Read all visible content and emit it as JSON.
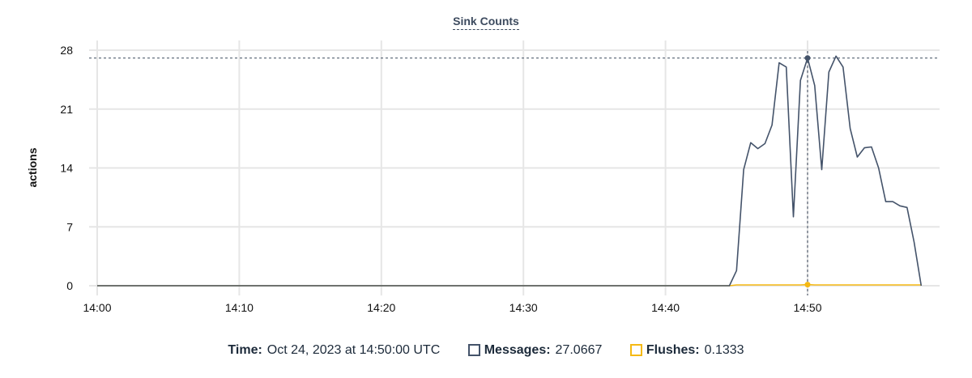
{
  "chart_data": {
    "type": "line",
    "title": "Sink Counts",
    "ylabel": "actions",
    "xlabel": "",
    "ylim": [
      0,
      28
    ],
    "yticks": [
      "0",
      "7",
      "14",
      "21",
      "28"
    ],
    "xticks": [
      "14:00",
      "14:10",
      "14:20",
      "14:30",
      "14:40",
      "14:50"
    ],
    "grid": true,
    "x": [
      "14:00:00",
      "14:00:30",
      "14:01:00",
      "14:01:30",
      "14:02:00",
      "14:02:30",
      "14:03:00",
      "14:03:30",
      "14:04:00",
      "14:04:30",
      "14:05:00",
      "14:05:30",
      "14:06:00",
      "14:06:30",
      "14:07:00",
      "14:07:30",
      "14:08:00",
      "14:08:30",
      "14:09:00",
      "14:09:30",
      "14:10:00",
      "14:10:30",
      "14:11:00",
      "14:11:30",
      "14:12:00",
      "14:12:30",
      "14:13:00",
      "14:13:30",
      "14:14:00",
      "14:14:30",
      "14:15:00",
      "14:15:30",
      "14:16:00",
      "14:16:30",
      "14:17:00",
      "14:17:30",
      "14:18:00",
      "14:18:30",
      "14:19:00",
      "14:19:30",
      "14:20:00",
      "14:20:30",
      "14:21:00",
      "14:21:30",
      "14:22:00",
      "14:22:30",
      "14:23:00",
      "14:23:30",
      "14:24:00",
      "14:24:30",
      "14:25:00",
      "14:25:30",
      "14:26:00",
      "14:26:30",
      "14:27:00",
      "14:27:30",
      "14:28:00",
      "14:28:30",
      "14:29:00",
      "14:29:30",
      "14:30:00",
      "14:30:30",
      "14:31:00",
      "14:31:30",
      "14:32:00",
      "14:32:30",
      "14:33:00",
      "14:33:30",
      "14:34:00",
      "14:34:30",
      "14:35:00",
      "14:35:30",
      "14:36:00",
      "14:36:30",
      "14:37:00",
      "14:37:30",
      "14:38:00",
      "14:38:30",
      "14:39:00",
      "14:39:30",
      "14:40:00",
      "14:40:30",
      "14:41:00",
      "14:41:30",
      "14:42:00",
      "14:42:30",
      "14:43:00",
      "14:43:30",
      "14:44:00",
      "14:44:30",
      "14:45:00",
      "14:45:30",
      "14:46:00",
      "14:46:30",
      "14:47:00",
      "14:47:30",
      "14:48:00",
      "14:48:30",
      "14:49:00",
      "14:49:30",
      "14:50:00",
      "14:50:30",
      "14:51:00",
      "14:51:30",
      "14:52:00",
      "14:52:30",
      "14:53:00",
      "14:53:30",
      "14:54:00",
      "14:54:30",
      "14:55:00",
      "14:55:30",
      "14:56:00",
      "14:56:30",
      "14:57:00",
      "14:57:30",
      "14:58:00"
    ],
    "series": [
      {
        "name": "Messages",
        "color": "#44536a",
        "values": [
          0,
          0,
          0,
          0,
          0,
          0,
          0,
          0,
          0,
          0,
          0,
          0,
          0,
          0,
          0,
          0,
          0,
          0,
          0,
          0,
          0,
          0,
          0,
          0,
          0,
          0,
          0,
          0,
          0,
          0,
          0,
          0,
          0,
          0,
          0,
          0,
          0,
          0,
          0,
          0,
          0,
          0,
          0,
          0,
          0,
          0,
          0,
          0,
          0,
          0,
          0,
          0,
          0,
          0,
          0,
          0,
          0,
          0,
          0,
          0,
          0,
          0,
          0,
          0,
          0,
          0,
          0,
          0,
          0,
          0,
          0,
          0,
          0,
          0,
          0,
          0,
          0,
          0,
          0,
          0,
          0,
          0,
          0,
          0,
          0,
          0,
          0,
          0,
          0,
          0,
          1.8,
          13.8,
          17.0,
          16.3,
          16.9,
          19.1,
          26.5,
          26.0,
          8.2,
          24.4,
          27.0667,
          23.8,
          13.8,
          25.4,
          27.3,
          26.0,
          18.7,
          15.3,
          16.4,
          16.5,
          14.0,
          10.0,
          10.0,
          9.5,
          9.3,
          5.2,
          0
        ]
      },
      {
        "name": "Flushes",
        "color": "#f5b914",
        "values": [
          0,
          0,
          0,
          0,
          0,
          0,
          0,
          0,
          0,
          0,
          0,
          0,
          0,
          0,
          0,
          0,
          0,
          0,
          0,
          0,
          0,
          0,
          0,
          0,
          0,
          0,
          0,
          0,
          0,
          0,
          0,
          0,
          0,
          0,
          0,
          0,
          0,
          0,
          0,
          0,
          0,
          0,
          0,
          0,
          0,
          0,
          0,
          0,
          0,
          0,
          0,
          0,
          0,
          0,
          0,
          0,
          0,
          0,
          0,
          0,
          0,
          0,
          0,
          0,
          0,
          0,
          0,
          0,
          0,
          0,
          0,
          0,
          0,
          0,
          0,
          0,
          0,
          0,
          0,
          0,
          0,
          0,
          0,
          0,
          0,
          0,
          0,
          0,
          0,
          0,
          0.1,
          0.1,
          0.1,
          0.1,
          0.1,
          0.1,
          0.1,
          0.1,
          0.1,
          0.1,
          0.1333,
          0.1,
          0.1,
          0.1,
          0.1,
          0.1,
          0.1,
          0.1,
          0.1,
          0.1,
          0.1,
          0.1,
          0.1,
          0.1,
          0.1,
          0.1,
          0.1
        ]
      }
    ],
    "hover": {
      "index": 100
    }
  },
  "tooltip": {
    "time_label": "Time:",
    "time_value": "Oct 24, 2023 at 14:50:00 UTC",
    "messages_label": "Messages:",
    "messages_value": "27.0667",
    "flushes_label": "Flushes:",
    "flushes_value": "0.1333"
  }
}
